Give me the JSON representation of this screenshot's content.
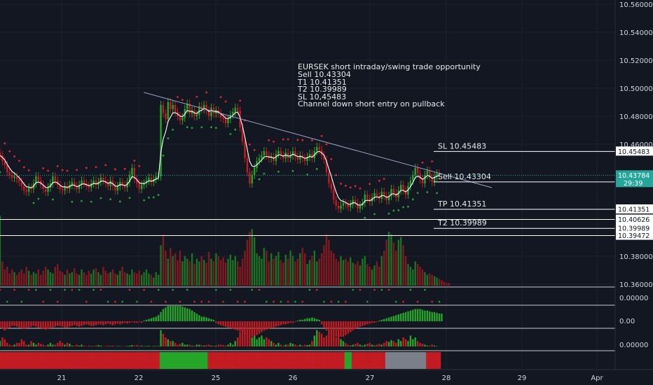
{
  "chart_data": {
    "type": "candlestick",
    "symbol": "EURSEK",
    "annotation_lines": [
      "EURSEK short intraday/swing trade opportunity",
      "Sell 10.43304",
      "T1 10.41351",
      "T2 10.39989",
      "SL 10,45483",
      "Channel down short entry on pullback"
    ],
    "price_axis": {
      "ylim": [
        10.34,
        10.56
      ],
      "ticks": [
        "10.56000",
        "10.54000",
        "10.52000",
        "10.50000",
        "10.48000",
        "10.46000",
        "10.38000",
        "10.36000"
      ]
    },
    "x_axis": {
      "ticks": [
        "21",
        "22",
        "25",
        "26",
        "27",
        "28",
        "29",
        "Apr"
      ]
    },
    "levels": [
      {
        "label": "SL 10.45483",
        "value": 10.45483,
        "tag": "10.45483"
      },
      {
        "label": "Sell 10.43304",
        "value": 10.43304,
        "tag": "10.43304"
      },
      {
        "label": "TP 10.41351",
        "value": 10.41351,
        "tag": "10.41351"
      },
      {
        "label": "",
        "value": 10.40626,
        "tag": "10.40626"
      },
      {
        "label": "T2 10.39989",
        "value": 10.39989,
        "tag": "10.39989"
      },
      {
        "label": "",
        "value": 10.39472,
        "tag": "10.39472"
      }
    ],
    "current_price": {
      "value": 10.43784,
      "tag": "10.43784",
      "countdown": "29:39"
    },
    "trendline": {
      "start": [
        22.2,
        10.497
      ],
      "end": [
        28.6,
        10.429
      ]
    },
    "closes": [
      10.452,
      10.448,
      10.445,
      10.44,
      10.438,
      10.436,
      10.437,
      10.435,
      10.433,
      10.43,
      10.427,
      10.426,
      10.429,
      10.428,
      10.432,
      10.437,
      10.434,
      10.431,
      10.428,
      10.426,
      10.429,
      10.432,
      10.437,
      10.434,
      10.431,
      10.428,
      10.427,
      10.43,
      10.428,
      10.431,
      10.433,
      10.43,
      10.428,
      10.431,
      10.434,
      10.432,
      10.43,
      10.429,
      10.432,
      10.434,
      10.431,
      10.433,
      10.436,
      10.434,
      10.432,
      10.43,
      10.434,
      10.43,
      10.427,
      10.43,
      10.433,
      10.431,
      10.429,
      10.433,
      10.438,
      10.443,
      10.435,
      10.432,
      10.428,
      10.431,
      10.432,
      10.434,
      10.436,
      10.433,
      10.435,
      10.437,
      10.437,
      10.488,
      10.482,
      10.478,
      10.49,
      10.485,
      10.488,
      10.483,
      10.48,
      10.477,
      10.479,
      10.485,
      10.489,
      10.482,
      10.484,
      10.48,
      10.481,
      10.487,
      10.485,
      10.488,
      10.484,
      10.48,
      10.486,
      10.482,
      10.484,
      10.482,
      10.479,
      10.478,
      10.475,
      10.478,
      10.481,
      10.483,
      10.486,
      10.484,
      10.472,
      10.462,
      10.45,
      10.44,
      10.432,
      10.438,
      10.443,
      10.448,
      10.45,
      10.452,
      10.455,
      10.452,
      10.45,
      10.451,
      10.448,
      10.453,
      10.455,
      10.452,
      10.45,
      10.454,
      10.45,
      10.452,
      10.455,
      10.451,
      10.449,
      10.452,
      10.45,
      10.448,
      10.451,
      10.453,
      10.45,
      10.455,
      10.458,
      10.456,
      10.452,
      10.449,
      10.44,
      10.432,
      10.428,
      10.42,
      10.416,
      10.414,
      10.416,
      10.418,
      10.417,
      10.415,
      10.417,
      10.42,
      10.418,
      10.414,
      10.416,
      10.418,
      10.424,
      10.421,
      10.419,
      10.422,
      10.425,
      10.423,
      10.421,
      10.426,
      10.423,
      10.42,
      10.423,
      10.428,
      10.425,
      10.422,
      10.427,
      10.431,
      10.427,
      10.424,
      10.43,
      10.434,
      10.438,
      10.443,
      10.439,
      10.435,
      10.432,
      10.438,
      10.441,
      10.436,
      10.433,
      10.437,
      10.439,
      10.438
    ],
    "volumes": [
      52,
      18,
      12,
      14,
      9,
      12,
      10,
      8,
      10,
      12,
      9,
      14,
      11,
      8,
      10,
      9,
      12,
      8,
      11,
      14,
      12,
      10,
      9,
      14,
      16,
      11,
      10,
      8,
      12,
      9,
      10,
      13,
      9,
      8,
      12,
      10,
      8,
      11,
      9,
      12,
      13,
      10,
      8,
      14,
      11,
      9,
      10,
      12,
      9,
      8,
      11,
      14,
      10,
      9,
      8,
      12,
      10,
      9,
      11,
      8,
      10,
      12,
      9,
      8,
      6,
      10,
      8,
      30,
      38,
      26,
      20,
      28,
      22,
      24,
      19,
      26,
      18,
      22,
      20,
      18,
      24,
      16,
      20,
      18,
      22,
      19,
      17,
      25,
      20,
      18,
      24,
      22,
      19,
      21,
      17,
      20,
      23,
      19,
      22,
      18,
      14,
      20,
      26,
      34,
      40,
      42,
      36,
      24,
      22,
      20,
      28,
      26,
      18,
      24,
      20,
      22,
      25,
      19,
      17,
      23,
      20,
      26,
      22,
      18,
      20,
      24,
      28,
      24,
      16,
      19,
      22,
      26,
      18,
      20,
      24,
      30,
      38,
      34,
      26,
      24,
      20,
      18,
      22,
      19,
      20,
      18,
      21,
      17,
      16,
      18,
      15,
      20,
      22,
      16,
      14,
      12,
      15,
      18,
      14,
      22,
      26,
      34,
      40,
      38,
      32,
      26,
      34,
      36,
      30,
      22,
      16,
      14,
      12,
      18,
      16,
      14,
      12,
      10,
      8,
      9,
      8,
      7,
      6,
      5,
      4,
      3,
      2,
      2
    ],
    "ind2_values": [
      -0.4,
      -0.5,
      -0.6,
      -0.5,
      -0.4,
      -0.3,
      -0.3,
      -0.35,
      -0.4,
      -0.45,
      -0.5,
      -0.45,
      -0.4,
      -0.35,
      -0.3,
      -0.35,
      -0.4,
      -0.45,
      -0.5,
      -0.55,
      -0.5,
      -0.45,
      -0.4,
      -0.35,
      -0.3,
      -0.3,
      -0.35,
      -0.4,
      -0.4,
      -0.35,
      -0.3,
      -0.25,
      -0.3,
      -0.35,
      -0.3,
      -0.25,
      -0.2,
      -0.25,
      -0.3,
      -0.3,
      -0.25,
      -0.2,
      -0.2,
      -0.25,
      -0.2,
      -0.15,
      -0.2,
      -0.25,
      -0.2,
      -0.15,
      -0.2,
      -0.15,
      -0.1,
      -0.15,
      -0.1,
      -0.05,
      -0.1,
      -0.1,
      -0.05,
      -0.1,
      0.05,
      0.1,
      0.15,
      0.2,
      0.25,
      0.3,
      0.4,
      0.6,
      0.8,
      0.9,
      1.0,
      1.0,
      1.0,
      1.0,
      1.0,
      1.0,
      0.95,
      0.9,
      0.85,
      0.8,
      0.7,
      0.6,
      0.5,
      0.4,
      0.3,
      0.3,
      0.25,
      0.2,
      0.15,
      0.1,
      -0.1,
      -0.2,
      -0.25,
      -0.3,
      -0.35,
      -0.4,
      -0.45,
      -0.5,
      -0.55,
      -0.6,
      -0.65,
      -0.7,
      -0.8,
      -0.9,
      -1.0,
      -1.0,
      -1.0,
      -0.9,
      -0.8,
      -0.7,
      -0.6,
      -0.55,
      -0.5,
      -0.45,
      -0.4,
      -0.35,
      -0.3,
      -0.25,
      -0.2,
      -0.2,
      -0.15,
      -0.1,
      -0.1,
      -0.05,
      0.05,
      0.1,
      0.1,
      0.15,
      0.2,
      0.2,
      0.25,
      0.2,
      0.15,
      0.1,
      -0.2,
      -0.4,
      -0.6,
      -0.8,
      -1.0,
      -1.0,
      -1.0,
      -1.0,
      -1.0,
      -1.0,
      -0.9,
      -0.8,
      -0.7,
      -0.6,
      -0.5,
      -0.4,
      -0.35,
      -0.3,
      -0.25,
      -0.2,
      -0.15,
      -0.1,
      -0.1,
      -0.05,
      0.05,
      0.1,
      0.15,
      0.2,
      0.25,
      0.3,
      0.35,
      0.4,
      0.45,
      0.5,
      0.55,
      0.6,
      0.65,
      0.7,
      0.75,
      0.8,
      0.8,
      0.8,
      0.75,
      0.7,
      0.7,
      0.65,
      0.6,
      0.6,
      0.55,
      0.5,
      0.5
    ],
    "ind3_values": [
      0.3,
      0.5,
      0.4,
      0.2,
      0.1,
      0.05,
      -0.1,
      -0.2,
      0.2,
      0.4,
      0.3,
      0.1,
      -0.1,
      -0.3,
      -0.2,
      0.1,
      0.2,
      0.15,
      0.1,
      0.05,
      0.1,
      0.2,
      0.1,
      -0.1,
      -0.2,
      -0.3,
      -0.2,
      0.1,
      0.2,
      0.15,
      0.05,
      -0.05,
      0.1,
      0.05,
      0.1,
      0.05,
      0.02,
      0.05,
      0.03,
      0.02,
      0.05,
      0.08,
      0.05,
      0.02,
      -0.03,
      -0.05,
      0.03,
      0.05,
      0.02,
      0.03,
      0.02,
      0.01,
      0.02,
      0.03,
      0.05,
      0.08,
      -0.05,
      -0.08,
      0.04,
      0.05,
      0.02,
      0.03,
      0.04,
      0.02,
      0.03,
      0.02,
      0.03,
      0.9,
      0.7,
      0.5,
      0.4,
      0.3,
      0.3,
      0.2,
      0.1,
      0.15,
      0.2,
      0.1,
      0.1,
      0.1,
      0.05,
      0.05,
      0.1,
      0.1,
      0.08,
      0.05,
      0.08,
      0.1,
      0.05,
      0.04,
      0.05,
      0.1,
      0.1,
      0.08,
      0.05,
      0.1,
      0.2,
      0.1,
      0.3,
      0.5,
      0.8,
      1.0,
      1.0,
      0.8,
      0.6,
      0.5,
      0.6,
      0.4,
      0.5,
      0.6,
      0.4,
      0.5,
      0.4,
      0.3,
      0.2,
      0.1,
      0.2,
      0.1,
      0.05,
      0.1,
      0.1,
      0.2,
      0.15,
      0.1,
      0.05,
      0.1,
      0.05,
      0.1,
      0.08,
      0.1,
      0.3,
      0.6,
      0.9,
      0.8,
      0.7,
      0.5,
      0.6,
      0.8,
      0.9,
      0.6,
      0.5,
      0.7,
      0.4,
      0.3,
      0.2,
      0.1,
      0.05,
      0.1,
      0.15,
      0.2,
      0.1,
      0.05,
      0.1,
      0.15,
      0.2,
      0.1,
      0.05,
      0.1,
      0.15,
      0.1,
      0.2,
      0.3,
      0.25,
      0.35,
      0.3,
      0.2,
      0.4,
      0.3,
      0.5,
      0.4,
      0.3,
      0.6,
      0.4,
      0.5,
      0.3,
      0.2,
      0.15,
      0.1,
      0.05,
      0.05,
      0.1,
      0.05,
      0.02
    ],
    "colors": {
      "background": "#131722",
      "grid": "#1e222d",
      "text": "#d1d4dc",
      "up": "#26a629",
      "down": "#c21b22",
      "line": "#ffffff",
      "trend": "#9aa4c8",
      "current": "#26a69a",
      "level": "#ffffff"
    }
  }
}
